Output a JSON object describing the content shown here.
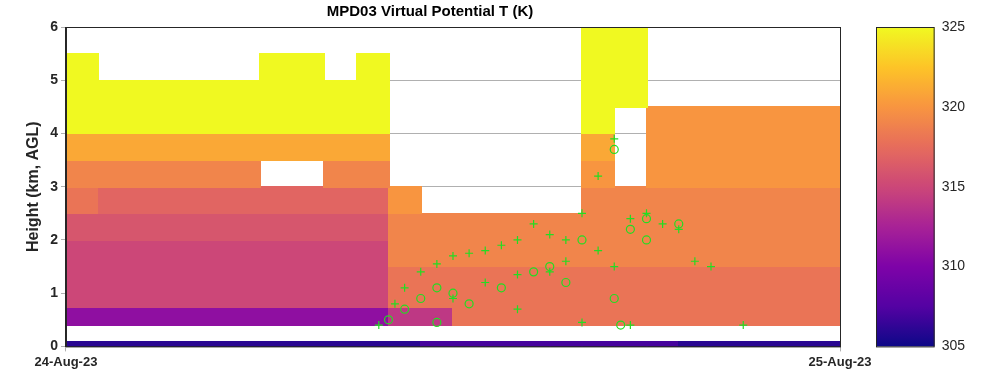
{
  "chart_data": {
    "type": "heatmap",
    "title": "MPD03 Virtual Potential T (K)",
    "y_label": "Height (km, AGL)",
    "xlim": [
      0,
      24
    ],
    "xticks": [
      {
        "value": 0,
        "label": "24-Aug-23"
      },
      {
        "value": 24,
        "label": "25-Aug-23"
      }
    ],
    "ylim": [
      0,
      6
    ],
    "yticks": [
      0,
      1,
      2,
      3,
      4,
      5,
      6
    ],
    "grid": true,
    "x_edges": [
      0,
      1,
      2,
      3,
      4,
      5,
      6,
      7,
      8,
      9,
      10,
      11,
      12,
      13,
      14,
      15,
      16,
      17,
      18,
      19,
      20,
      21,
      22,
      23,
      24
    ],
    "y_edges": [
      0,
      0.1,
      0.4,
      0.75,
      1,
      1.5,
      2,
      2.5,
      3,
      3.5,
      4,
      4.5,
      5,
      5.5,
      6
    ],
    "cells": [
      [
        306,
        306,
        306,
        306,
        306,
        306,
        306,
        306,
        306,
        306,
        306,
        307,
        307,
        307,
        307,
        307,
        307,
        307,
        307,
        306,
        306,
        306,
        306,
        306
      ],
      [
        null,
        null,
        null,
        null,
        null,
        null,
        null,
        null,
        null,
        null,
        null,
        null,
        null,
        null,
        null,
        null,
        null,
        null,
        null,
        null,
        null,
        null,
        null,
        null
      ],
      [
        311,
        311,
        311,
        311,
        311,
        311,
        311,
        311,
        311,
        311,
        314,
        314,
        318,
        318,
        318,
        318,
        318,
        318,
        318,
        318,
        318,
        318,
        318,
        318
      ],
      [
        315,
        315,
        315,
        315,
        315,
        315,
        315,
        315,
        315,
        315,
        318,
        318,
        318,
        318,
        318,
        318,
        318,
        318,
        318,
        318,
        318,
        318,
        318,
        318
      ],
      [
        315,
        315,
        315,
        315,
        315,
        315,
        315,
        315,
        315,
        315,
        318,
        318,
        318,
        318,
        318,
        318,
        318,
        318,
        318,
        318,
        318,
        318,
        318,
        318
      ],
      [
        315,
        315,
        315,
        315,
        315,
        315,
        315,
        315,
        315,
        315,
        319,
        319,
        319,
        319,
        319,
        319,
        319,
        319,
        319,
        319,
        319,
        319,
        319,
        319
      ],
      [
        316,
        316,
        316,
        316,
        316,
        316,
        316,
        316,
        316,
        316,
        319,
        319,
        319,
        319,
        319,
        319,
        319,
        319,
        319,
        319,
        319,
        319,
        319,
        319
      ],
      [
        318,
        317,
        317,
        317,
        317,
        317,
        317,
        317,
        317,
        317,
        320,
        null,
        null,
        null,
        null,
        null,
        319,
        319,
        319,
        319,
        319,
        319,
        319,
        319
      ],
      [
        319,
        319,
        319,
        319,
        319,
        319,
        null,
        null,
        319,
        319,
        null,
        null,
        null,
        null,
        null,
        null,
        320,
        null,
        320,
        320,
        320,
        320,
        320,
        320
      ],
      [
        321,
        321,
        321,
        321,
        321,
        321,
        321,
        321,
        321,
        321,
        null,
        null,
        null,
        null,
        null,
        null,
        321,
        null,
        320,
        320,
        320,
        320,
        320,
        320
      ],
      [
        325,
        325,
        325,
        325,
        325,
        325,
        325,
        325,
        325,
        325,
        null,
        null,
        null,
        null,
        null,
        null,
        325,
        null,
        320,
        320,
        320,
        320,
        320,
        320
      ],
      [
        325,
        325,
        325,
        325,
        325,
        325,
        325,
        325,
        325,
        325,
        null,
        null,
        null,
        null,
        null,
        null,
        325,
        325,
        null,
        null,
        null,
        null,
        null,
        null
      ],
      [
        325,
        null,
        null,
        null,
        null,
        null,
        325,
        325,
        null,
        325,
        null,
        null,
        null,
        null,
        null,
        null,
        325,
        325,
        null,
        null,
        null,
        null,
        null,
        null
      ],
      [
        null,
        null,
        null,
        null,
        null,
        null,
        null,
        null,
        null,
        null,
        null,
        null,
        null,
        null,
        null,
        null,
        325,
        325,
        null,
        null,
        null,
        null,
        null,
        null
      ]
    ],
    "colorbar": {
      "range": [
        305,
        325
      ],
      "ticks": [
        305,
        310,
        315,
        320,
        325
      ]
    },
    "series": [
      {
        "color": "#22dd22",
        "marker": "plus",
        "x": [
          9.7,
          10.2,
          10.5,
          11,
          11.5,
          12,
          12.5,
          13,
          13.5,
          14,
          14.5,
          15,
          15.5,
          16,
          16.5,
          17,
          17.5,
          18,
          18.5,
          19,
          19.5,
          20,
          21,
          17.5,
          16,
          12,
          13,
          14,
          15,
          15.5,
          16.5,
          17,
          14
        ],
        "values": [
          0.4,
          0.8,
          1.1,
          1.4,
          1.55,
          1.7,
          1.75,
          1.8,
          1.9,
          2.0,
          2.3,
          2.1,
          2.0,
          2.5,
          3.2,
          3.9,
          2.4,
          2.5,
          2.3,
          2.2,
          1.6,
          1.5,
          0.4,
          0.4,
          0.45,
          0.9,
          1.2,
          1.35,
          1.4,
          1.6,
          1.8,
          1.5,
          0.7
        ]
      },
      {
        "color": "#22dd22",
        "marker": "circle",
        "x": [
          10,
          10.5,
          11,
          11.5,
          12,
          12.5,
          13.5,
          14.5,
          15,
          15.5,
          16,
          17,
          17.5,
          18,
          17,
          18,
          19,
          17.2,
          11.5
        ],
        "values": [
          0.5,
          0.7,
          0.9,
          1.1,
          1.0,
          0.8,
          1.1,
          1.4,
          1.5,
          1.2,
          2.0,
          3.7,
          2.2,
          2.0,
          0.9,
          2.4,
          2.3,
          0.4,
          0.45
        ]
      }
    ]
  }
}
